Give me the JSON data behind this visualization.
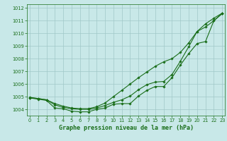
{
  "title": "Graphe pression niveau de la mer (hPa)",
  "x": [
    0,
    1,
    2,
    3,
    4,
    5,
    6,
    7,
    8,
    9,
    10,
    11,
    12,
    13,
    14,
    15,
    16,
    17,
    18,
    19,
    20,
    21,
    22,
    23
  ],
  "line1": [
    1004.9,
    1004.8,
    1004.7,
    1004.1,
    1004.05,
    1003.85,
    1003.8,
    1003.8,
    1004.0,
    1004.1,
    1004.4,
    1004.45,
    1004.45,
    1005.05,
    1005.5,
    1005.8,
    1005.8,
    1006.5,
    1007.5,
    1008.4,
    1009.2,
    1009.35,
    1011.0,
    1011.55
  ],
  "line2": [
    1004.9,
    1004.85,
    1004.75,
    1004.35,
    1004.15,
    1004.05,
    1004.0,
    1004.0,
    1004.1,
    1004.3,
    1004.55,
    1004.75,
    1005.05,
    1005.55,
    1005.95,
    1006.15,
    1006.2,
    1006.75,
    1007.8,
    1008.95,
    1010.15,
    1010.75,
    1011.2,
    1011.6
  ],
  "line3": [
    1004.95,
    1004.85,
    1004.75,
    1004.45,
    1004.25,
    1004.1,
    1004.05,
    1004.05,
    1004.2,
    1004.5,
    1005.0,
    1005.5,
    1006.0,
    1006.5,
    1006.95,
    1007.4,
    1007.75,
    1008.0,
    1008.5,
    1009.25,
    1010.15,
    1010.5,
    1011.0,
    1011.6
  ],
  "bg_color": "#c8e8e8",
  "grid_color": "#a0c8c8",
  "line_color": "#1a6e1a",
  "marker": "D",
  "marker_size": 1.8,
  "linewidth": 0.8,
  "ylim": [
    1003.5,
    1012.3
  ],
  "yticks": [
    1004,
    1005,
    1006,
    1007,
    1008,
    1009,
    1010,
    1011,
    1012
  ],
  "xticks": [
    0,
    1,
    2,
    3,
    4,
    5,
    6,
    7,
    8,
    9,
    10,
    11,
    12,
    13,
    14,
    15,
    16,
    17,
    18,
    19,
    20,
    21,
    22,
    23
  ],
  "title_fontsize": 6.0,
  "tick_fontsize": 4.8,
  "title_color": "#1a6e1a",
  "axis_color": "#1a6e1a",
  "xlim": [
    -0.3,
    23.3
  ]
}
